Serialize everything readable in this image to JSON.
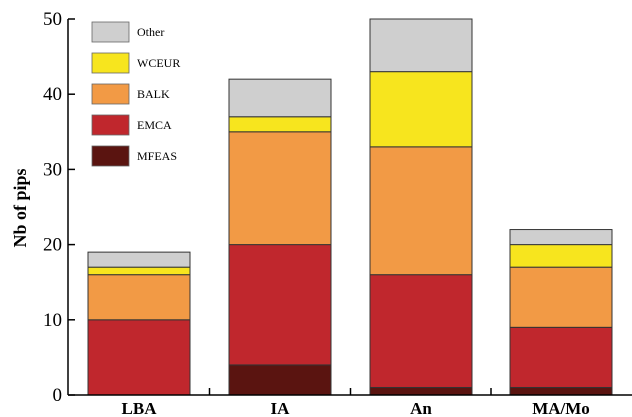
{
  "chart_data": {
    "type": "bar",
    "stacked": true,
    "categories": [
      "LBA",
      "IA",
      "An",
      "MA/Mo"
    ],
    "series": [
      {
        "name": "MFEAS",
        "color": "#5a1410",
        "values": [
          0,
          4,
          1,
          1
        ]
      },
      {
        "name": "EMCA",
        "color": "#c0272d",
        "values": [
          10,
          16,
          15,
          8
        ]
      },
      {
        "name": "BALK",
        "color": "#f29a45",
        "values": [
          6,
          15,
          17,
          8
        ]
      },
      {
        "name": "WCEUR",
        "color": "#f7e51e",
        "values": [
          1,
          2,
          10,
          3
        ]
      },
      {
        "name": "Other",
        "color": "#cfcfcf",
        "values": [
          2,
          5,
          7,
          2
        ]
      }
    ],
    "legend_order": [
      "Other",
      "WCEUR",
      "BALK",
      "EMCA",
      "MFEAS"
    ],
    "legend_position": "top-left",
    "ylabel": "Nb of pips",
    "xlabel": "",
    "ylim": [
      0,
      50
    ],
    "yticks": [
      0,
      10,
      20,
      30,
      40,
      50
    ],
    "grid": false
  }
}
